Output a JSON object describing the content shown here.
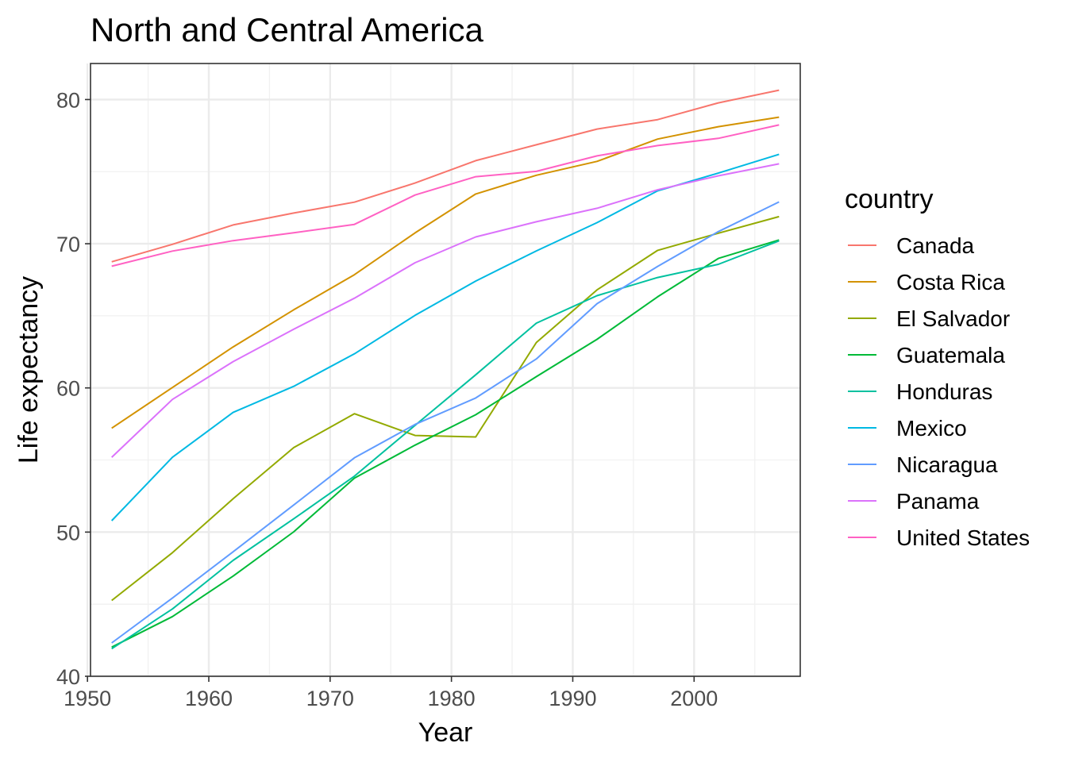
{
  "chart_data": {
    "type": "line",
    "title": "North and Central America",
    "xlabel": "Year",
    "ylabel": "Life expectancy",
    "xlim": [
      1950.25,
      2008.75
    ],
    "ylim": [
      40,
      82.5
    ],
    "x_ticks": [
      1950,
      1960,
      1970,
      1980,
      1990,
      2000
    ],
    "y_ticks": [
      40,
      50,
      60,
      70,
      80
    ],
    "grid": true,
    "legend_title": "country",
    "legend_position": "right",
    "x": [
      1952,
      1957,
      1962,
      1967,
      1972,
      1977,
      1982,
      1987,
      1992,
      1997,
      2002,
      2007
    ],
    "series": [
      {
        "name": "Canada",
        "color": "#F8766D",
        "values": [
          68.75,
          69.96,
          71.3,
          72.13,
          72.88,
          74.21,
          75.76,
          76.86,
          77.95,
          78.61,
          79.77,
          80.65
        ]
      },
      {
        "name": "Costa Rica",
        "color": "#D39200",
        "values": [
          57.21,
          60.03,
          62.84,
          65.42,
          67.85,
          70.75,
          73.45,
          74.75,
          75.71,
          77.26,
          78.12,
          78.78
        ]
      },
      {
        "name": "El Salvador",
        "color": "#93AA00",
        "values": [
          45.26,
          48.57,
          52.31,
          55.86,
          58.21,
          56.7,
          56.6,
          63.15,
          66.8,
          69.54,
          70.73,
          71.88
        ]
      },
      {
        "name": "Guatemala",
        "color": "#00BA38",
        "values": [
          42.02,
          44.14,
          46.95,
          50.02,
          53.74,
          56.03,
          58.14,
          60.78,
          63.37,
          66.32,
          68.98,
          70.26
        ]
      },
      {
        "name": "Honduras",
        "color": "#00C19F",
        "values": [
          41.91,
          44.67,
          48.04,
          50.92,
          53.88,
          57.4,
          60.91,
          64.49,
          66.4,
          67.66,
          68.57,
          70.2
        ]
      },
      {
        "name": "Mexico",
        "color": "#00B9E3",
        "values": [
          50.79,
          55.19,
          58.3,
          60.11,
          62.36,
          65.03,
          67.41,
          69.5,
          71.46,
          73.67,
          74.9,
          76.2
        ]
      },
      {
        "name": "Nicaragua",
        "color": "#619CFF",
        "values": [
          42.31,
          45.43,
          48.63,
          51.88,
          55.15,
          57.47,
          59.3,
          62.01,
          65.84,
          68.43,
          70.84,
          72.9
        ]
      },
      {
        "name": "Panama",
        "color": "#DB72FB",
        "values": [
          55.19,
          59.2,
          61.82,
          64.07,
          66.22,
          68.68,
          70.47,
          71.52,
          72.46,
          73.74,
          74.71,
          75.54
        ]
      },
      {
        "name": "United States",
        "color": "#FF61C3",
        "values": [
          68.44,
          69.49,
          70.21,
          70.76,
          71.34,
          73.38,
          74.65,
          75.02,
          76.09,
          76.81,
          77.31,
          78.24
        ]
      }
    ]
  }
}
